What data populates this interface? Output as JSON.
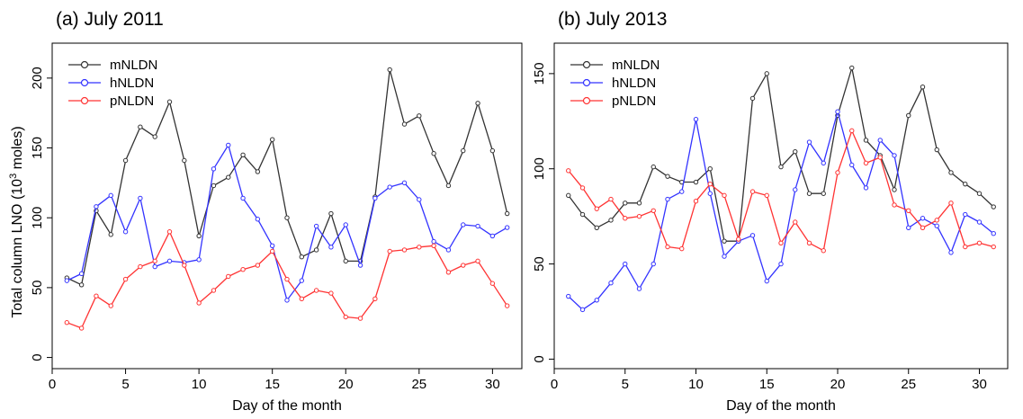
{
  "figure": {
    "ylabel_text": "Total column LNO (10",
    "ylabel_sup": "3",
    "ylabel_tail": " moles)"
  },
  "chart_data": [
    {
      "type": "line",
      "title": "(a) July 2011",
      "xlabel": "Day of the month",
      "ylabel": "Total column LNO (10³ moles)",
      "xlim": [
        0,
        32
      ],
      "ylim": [
        -8,
        225
      ],
      "xticks": [
        "0",
        "5",
        "10",
        "15",
        "20",
        "25",
        "30"
      ],
      "yticks": [
        "0",
        "50",
        "100",
        "150",
        "200"
      ],
      "grid": false,
      "legend_position": "top-left",
      "x": [
        1,
        2,
        3,
        4,
        5,
        6,
        7,
        8,
        9,
        10,
        11,
        12,
        13,
        14,
        15,
        16,
        17,
        18,
        19,
        20,
        21,
        22,
        23,
        24,
        25,
        26,
        27,
        28,
        29,
        30,
        31
      ],
      "series": [
        {
          "name": "mNLDN",
          "color": "#333333",
          "values": [
            57,
            52,
            105,
            88,
            141,
            165,
            158,
            183,
            141,
            87,
            123,
            129,
            145,
            133,
            156,
            100,
            72,
            77,
            103,
            69,
            69,
            115,
            206,
            167,
            173,
            146,
            123,
            148,
            182,
            148,
            103
          ]
        },
        {
          "name": "hNLDN",
          "color": "#3333ff",
          "values": [
            55,
            60,
            108,
            116,
            90,
            114,
            65,
            69,
            68,
            70,
            135,
            152,
            114,
            99,
            80,
            41,
            55,
            94,
            79,
            95,
            66,
            114,
            122,
            125,
            113,
            83,
            77,
            95,
            94,
            87,
            93
          ]
        },
        {
          "name": "pNLDN",
          "color": "#ff3333",
          "values": [
            25,
            21,
            44,
            37,
            56,
            65,
            69,
            90,
            66,
            39,
            48,
            58,
            63,
            66,
            76,
            56,
            42,
            48,
            46,
            29,
            28,
            42,
            76,
            77,
            79,
            80,
            61,
            66,
            69,
            53,
            37
          ]
        }
      ]
    },
    {
      "type": "line",
      "title": "(b) July 2013",
      "xlabel": "Day of the month",
      "ylabel": "",
      "xlim": [
        0,
        32
      ],
      "ylim": [
        -5,
        166
      ],
      "xticks": [
        "0",
        "5",
        "10",
        "15",
        "20",
        "25",
        "30"
      ],
      "yticks": [
        "0",
        "50",
        "100",
        "150"
      ],
      "grid": false,
      "legend_position": "top-left",
      "x": [
        1,
        2,
        3,
        4,
        5,
        6,
        7,
        8,
        9,
        10,
        11,
        12,
        13,
        14,
        15,
        16,
        17,
        18,
        19,
        20,
        21,
        22,
        23,
        24,
        25,
        26,
        27,
        28,
        29,
        30,
        31
      ],
      "series": [
        {
          "name": "mNLDN",
          "color": "#333333",
          "values": [
            86,
            76,
            69,
            73,
            82,
            82,
            101,
            96,
            93,
            93,
            100,
            62,
            62,
            137,
            150,
            101,
            109,
            87,
            87,
            128,
            153,
            115,
            107,
            89,
            128,
            143,
            110,
            98,
            92,
            87,
            80
          ]
        },
        {
          "name": "hNLDN",
          "color": "#3333ff",
          "values": [
            33,
            26,
            31,
            40,
            50,
            37,
            50,
            84,
            88,
            126,
            87,
            54,
            62,
            65,
            41,
            50,
            89,
            114,
            103,
            130,
            102,
            90,
            115,
            107,
            69,
            74,
            70,
            56,
            76,
            72,
            66
          ]
        },
        {
          "name": "pNLDN",
          "color": "#ff3333",
          "values": [
            99,
            90,
            79,
            84,
            74,
            75,
            78,
            59,
            58,
            83,
            92,
            86,
            63,
            88,
            86,
            61,
            72,
            61,
            57,
            98,
            120,
            103,
            106,
            81,
            78,
            69,
            73,
            82,
            59,
            61,
            59
          ]
        }
      ]
    }
  ]
}
